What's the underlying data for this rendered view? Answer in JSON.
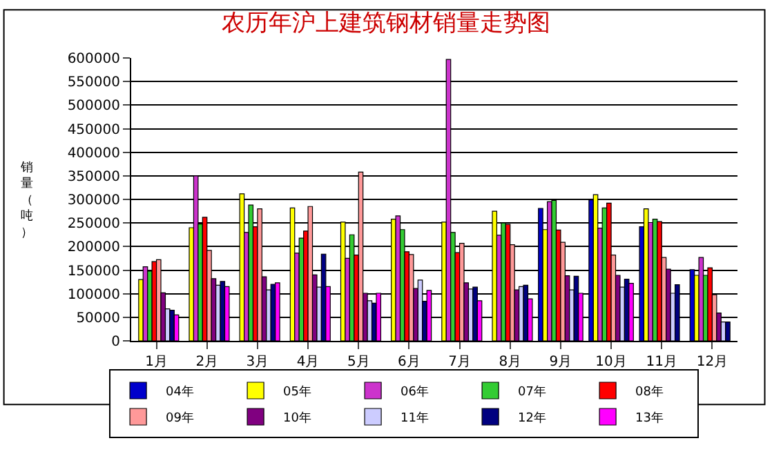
{
  "chart_data": {
    "type": "bar",
    "title": "农历年沪上建筑钢材销量走势图",
    "ylabel": "销量（吨）",
    "categories": [
      "1月",
      "2月",
      "3月",
      "4月",
      "5月",
      "6月",
      "7月",
      "8月",
      "9月",
      "10月",
      "11月",
      "12月"
    ],
    "series": [
      {
        "name": "04年",
        "color": "#0000cc",
        "values": [
          null,
          null,
          null,
          null,
          null,
          null,
          null,
          null,
          281000,
          299000,
          242000,
          151000
        ]
      },
      {
        "name": "05年",
        "color": "#ffff00",
        "values": [
          130000,
          240000,
          312000,
          282000,
          252000,
          258000,
          252000,
          275000,
          236000,
          310000,
          280000,
          139000
        ]
      },
      {
        "name": "06年",
        "color": "#cc33cc",
        "values": [
          157000,
          350000,
          230000,
          186000,
          175000,
          265000,
          597000,
          224000,
          295000,
          239000,
          251000,
          177000
        ]
      },
      {
        "name": "07年",
        "color": "#33cc33",
        "values": [
          148000,
          248000,
          288000,
          218000,
          225000,
          236000,
          230000,
          250000,
          298000,
          282000,
          258000,
          139000
        ]
      },
      {
        "name": "08年",
        "color": "#ff0000",
        "values": [
          168000,
          262000,
          242000,
          233000,
          182000,
          189000,
          187000,
          247000,
          235000,
          292000,
          253000,
          155000
        ]
      },
      {
        "name": "09年",
        "color": "#ff9999",
        "values": [
          172000,
          192000,
          280000,
          285000,
          358000,
          183000,
          207000,
          204000,
          209000,
          182000,
          177000,
          98000
        ]
      },
      {
        "name": "10年",
        "color": "#800080",
        "values": [
          102000,
          132000,
          136000,
          140000,
          101000,
          111000,
          123000,
          108000,
          138000,
          139000,
          152000,
          59000
        ]
      },
      {
        "name": "11年",
        "color": "#ccccff",
        "values": [
          68000,
          118000,
          108000,
          114000,
          85000,
          129000,
          110000,
          115000,
          108000,
          114000,
          101000,
          40000
        ]
      },
      {
        "name": "12年",
        "color": "#000080",
        "values": [
          65000,
          126000,
          120000,
          184000,
          80000,
          84000,
          114000,
          118000,
          137000,
          131000,
          119000,
          40000
        ]
      },
      {
        "name": "13年",
        "color": "#ff00ff",
        "values": [
          55000,
          115000,
          123000,
          115000,
          101000,
          107000,
          85000,
          89000,
          101000,
          122000,
          null,
          null
        ]
      }
    ],
    "ylim": [
      0,
      600000
    ],
    "yticks": [
      0,
      50000,
      100000,
      150000,
      200000,
      250000,
      300000,
      350000,
      400000,
      450000,
      500000,
      550000,
      600000
    ],
    "grid": "y",
    "legend": "bottom"
  }
}
